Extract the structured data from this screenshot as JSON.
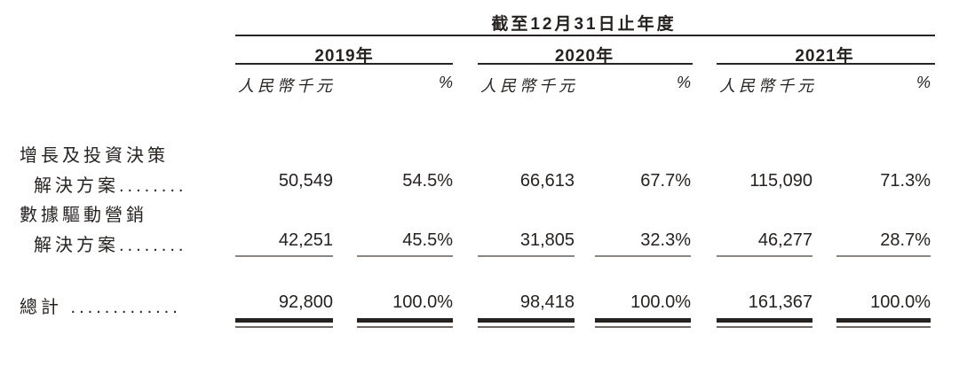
{
  "title": {
    "period_header": "截至12月31日止年度"
  },
  "columns": {
    "years": [
      "2019年",
      "2020年",
      "2021年"
    ],
    "unit_label": "人民幣千元",
    "percent_label": "%"
  },
  "rows": [
    {
      "label_line1": "增長及投資決策",
      "label_line2": "解決方案........",
      "values": [
        "50,549",
        "54.5%",
        "66,613",
        "67.7%",
        "115,090",
        "71.3%"
      ]
    },
    {
      "label_line1": "數據驅動營銷",
      "label_line2": "解決方案........",
      "values": [
        "42,251",
        "45.5%",
        "31,805",
        "32.3%",
        "46,277",
        "28.7%"
      ]
    }
  ],
  "total_row": {
    "label": "總計 .............",
    "values": [
      "92,800",
      "100.0%",
      "98,418",
      "100.0%",
      "161,367",
      "100.0%"
    ]
  },
  "colors": {
    "text": "#262220",
    "rule_strong": "#2a2423",
    "rule_light": "#8a8683",
    "background": "#ffffff"
  }
}
